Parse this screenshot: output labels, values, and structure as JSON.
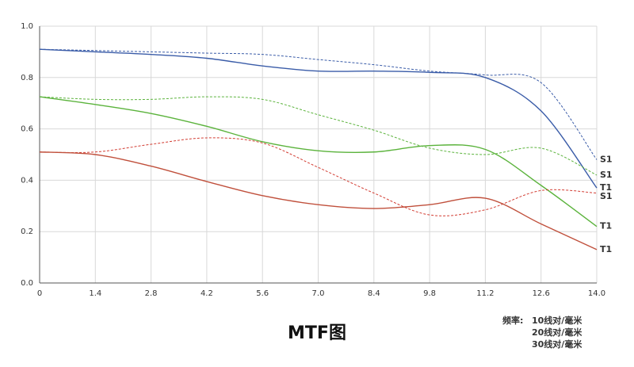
{
  "chart_data": {
    "type": "line",
    "title": "MTF图",
    "x": [
      0,
      1.4,
      2.8,
      4.2,
      5.6,
      {
        "value": 7,
        "label": "7.0"
      },
      8.4,
      9.8,
      11.2,
      12.6,
      {
        "value": 14,
        "label": "14.0"
      }
    ],
    "xlim": [
      0,
      14
    ],
    "xticks": [
      0,
      1.4,
      2.8,
      4.2,
      5.6,
      {
        "value": 7,
        "label": "7.0"
      },
      8.4,
      9.8,
      11.2,
      12.6,
      {
        "value": 14,
        "label": "14.0"
      }
    ],
    "ylim": [
      0,
      1
    ],
    "yticks": [
      {
        "value": 0,
        "label": "0.0"
      },
      0.2,
      0.4,
      0.6,
      0.8,
      {
        "value": 1,
        "label": "1.0"
      }
    ],
    "grid": true,
    "series": [
      {
        "name": "S1",
        "color": "#3a5ca8",
        "dashed": true,
        "values": [
          0.91,
          0.905,
          0.9,
          0.895,
          0.89,
          0.87,
          0.85,
          0.825,
          0.81,
          0.78,
          0.48
        ]
      },
      {
        "name": "T1",
        "color": "#3a5ca8",
        "dashed": false,
        "values": [
          0.91,
          0.9,
          0.89,
          0.875,
          0.845,
          0.825,
          0.825,
          0.82,
          0.8,
          0.67,
          0.37
        ]
      },
      {
        "name": "S1",
        "color": "#5bb33c",
        "dashed": true,
        "values": [
          0.725,
          0.715,
          0.715,
          0.725,
          0.715,
          0.655,
          0.595,
          0.525,
          0.5,
          0.525,
          0.42
        ]
      },
      {
        "name": "T1",
        "color": "#5bb33c",
        "dashed": false,
        "values": [
          0.725,
          0.695,
          0.66,
          0.61,
          0.55,
          0.515,
          0.51,
          0.535,
          0.52,
          0.38,
          0.22
        ]
      },
      {
        "name": "S1",
        "color": "#d23c32",
        "dashed": true,
        "values": [
          0.51,
          0.51,
          0.54,
          0.565,
          0.545,
          0.45,
          0.35,
          0.265,
          0.285,
          0.36,
          0.35
        ]
      },
      {
        "name": "T1",
        "color": "#c0503c",
        "dashed": false,
        "values": [
          0.51,
          0.5,
          0.455,
          0.395,
          0.34,
          0.305,
          0.29,
          0.305,
          0.33,
          0.23,
          0.13
        ]
      }
    ],
    "legend": {
      "title": "频率:",
      "items": [
        {
          "label": "10线对/毫米",
          "color": "#3a5ca8"
        },
        {
          "label": "20线对/毫米",
          "color": "#5bb33c"
        },
        {
          "label": "30线对/毫米",
          "color": "#d23c32"
        }
      ]
    }
  }
}
